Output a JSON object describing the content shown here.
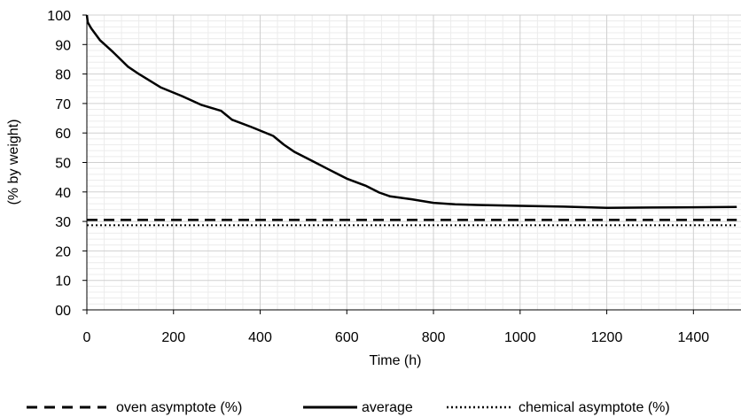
{
  "chart_data": {
    "type": "line",
    "title": "",
    "xlabel": "Time (h)",
    "ylabel": "(% by weight)",
    "xlim": [
      0,
      1500
    ],
    "ylim": [
      0,
      100
    ],
    "x_ticks": [
      {
        "v": 0,
        "label": "0"
      },
      {
        "v": 200,
        "label": "200"
      },
      {
        "v": 400,
        "label": "400"
      },
      {
        "v": 600,
        "label": "600"
      },
      {
        "v": 800,
        "label": "800"
      },
      {
        "v": 1000,
        "label": "1000"
      },
      {
        "v": 1200,
        "label": "1200"
      },
      {
        "v": 1400,
        "label": "1400"
      }
    ],
    "y_ticks": [
      {
        "v": 0,
        "label": "00"
      },
      {
        "v": 10,
        "label": "10"
      },
      {
        "v": 20,
        "label": "20"
      },
      {
        "v": 30,
        "label": "30"
      },
      {
        "v": 40,
        "label": "40"
      },
      {
        "v": 50,
        "label": "50"
      },
      {
        "v": 60,
        "label": "60"
      },
      {
        "v": 70,
        "label": "70"
      },
      {
        "v": 80,
        "label": "80"
      },
      {
        "v": 90,
        "label": "90"
      },
      {
        "v": 100,
        "label": "100"
      }
    ],
    "grid": true,
    "legend_position": "bottom",
    "series": [
      {
        "name": "oven asymptote (%)",
        "style": "dashed",
        "color": "#000000",
        "x": [
          0,
          1500
        ],
        "y": [
          30.5,
          30.5
        ]
      },
      {
        "name": "average",
        "style": "solid",
        "color": "#000000",
        "x": [
          0,
          2,
          10,
          30,
          60,
          95,
          120,
          170,
          220,
          265,
          310,
          335,
          380,
          430,
          455,
          480,
          520,
          560,
          600,
          645,
          675,
          700,
          750,
          800,
          850,
          900,
          1000,
          1100,
          1200,
          1300,
          1400,
          1500
        ],
        "y": [
          100,
          97.5,
          95.5,
          91.5,
          87.5,
          82.5,
          80,
          75.5,
          72.5,
          69.5,
          67.5,
          64.5,
          62,
          59,
          56,
          53.5,
          50.5,
          47.5,
          44.5,
          42,
          39.8,
          38.5,
          37.5,
          36.3,
          35.8,
          35.6,
          35.3,
          35,
          34.6,
          34.7,
          34.8,
          34.9
        ]
      },
      {
        "name": "chemical asymptote (%)",
        "style": "dotted",
        "color": "#000000",
        "x": [
          0,
          1500
        ],
        "y": [
          28.7,
          28.7
        ]
      }
    ]
  }
}
